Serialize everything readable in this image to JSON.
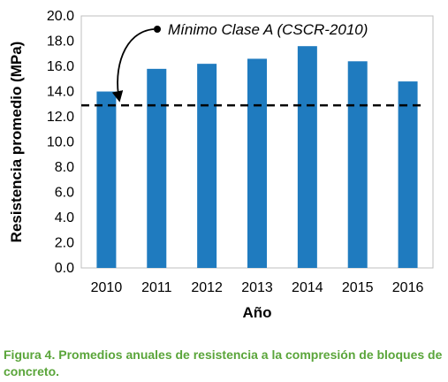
{
  "chart_data": {
    "type": "bar",
    "categories": [
      "2010",
      "2011",
      "2012",
      "2013",
      "2014",
      "2015",
      "2016"
    ],
    "values": [
      14.0,
      15.8,
      16.2,
      16.6,
      17.6,
      16.4,
      14.8
    ],
    "title": "",
    "xlabel": "Año",
    "ylabel": "Resistencia promedio (MPa)",
    "ylim": [
      0,
      20
    ],
    "yticks": [
      "0.0",
      "2.0",
      "4.0",
      "6.0",
      "8.0",
      "10.0",
      "12.0",
      "14.0",
      "16.0",
      "18.0",
      "20.0"
    ],
    "grid": false,
    "bar_color": "#1f7bbf",
    "reference_line": {
      "value": 12.9,
      "style": "dashed",
      "color": "#000000",
      "label": "Mínimo Clase A (CSCR-2010)"
    }
  },
  "caption": {
    "text": "Figura 4. Promedios anuales de resistencia a la compresión de bloques de concreto.",
    "color": "#5aa53a"
  }
}
